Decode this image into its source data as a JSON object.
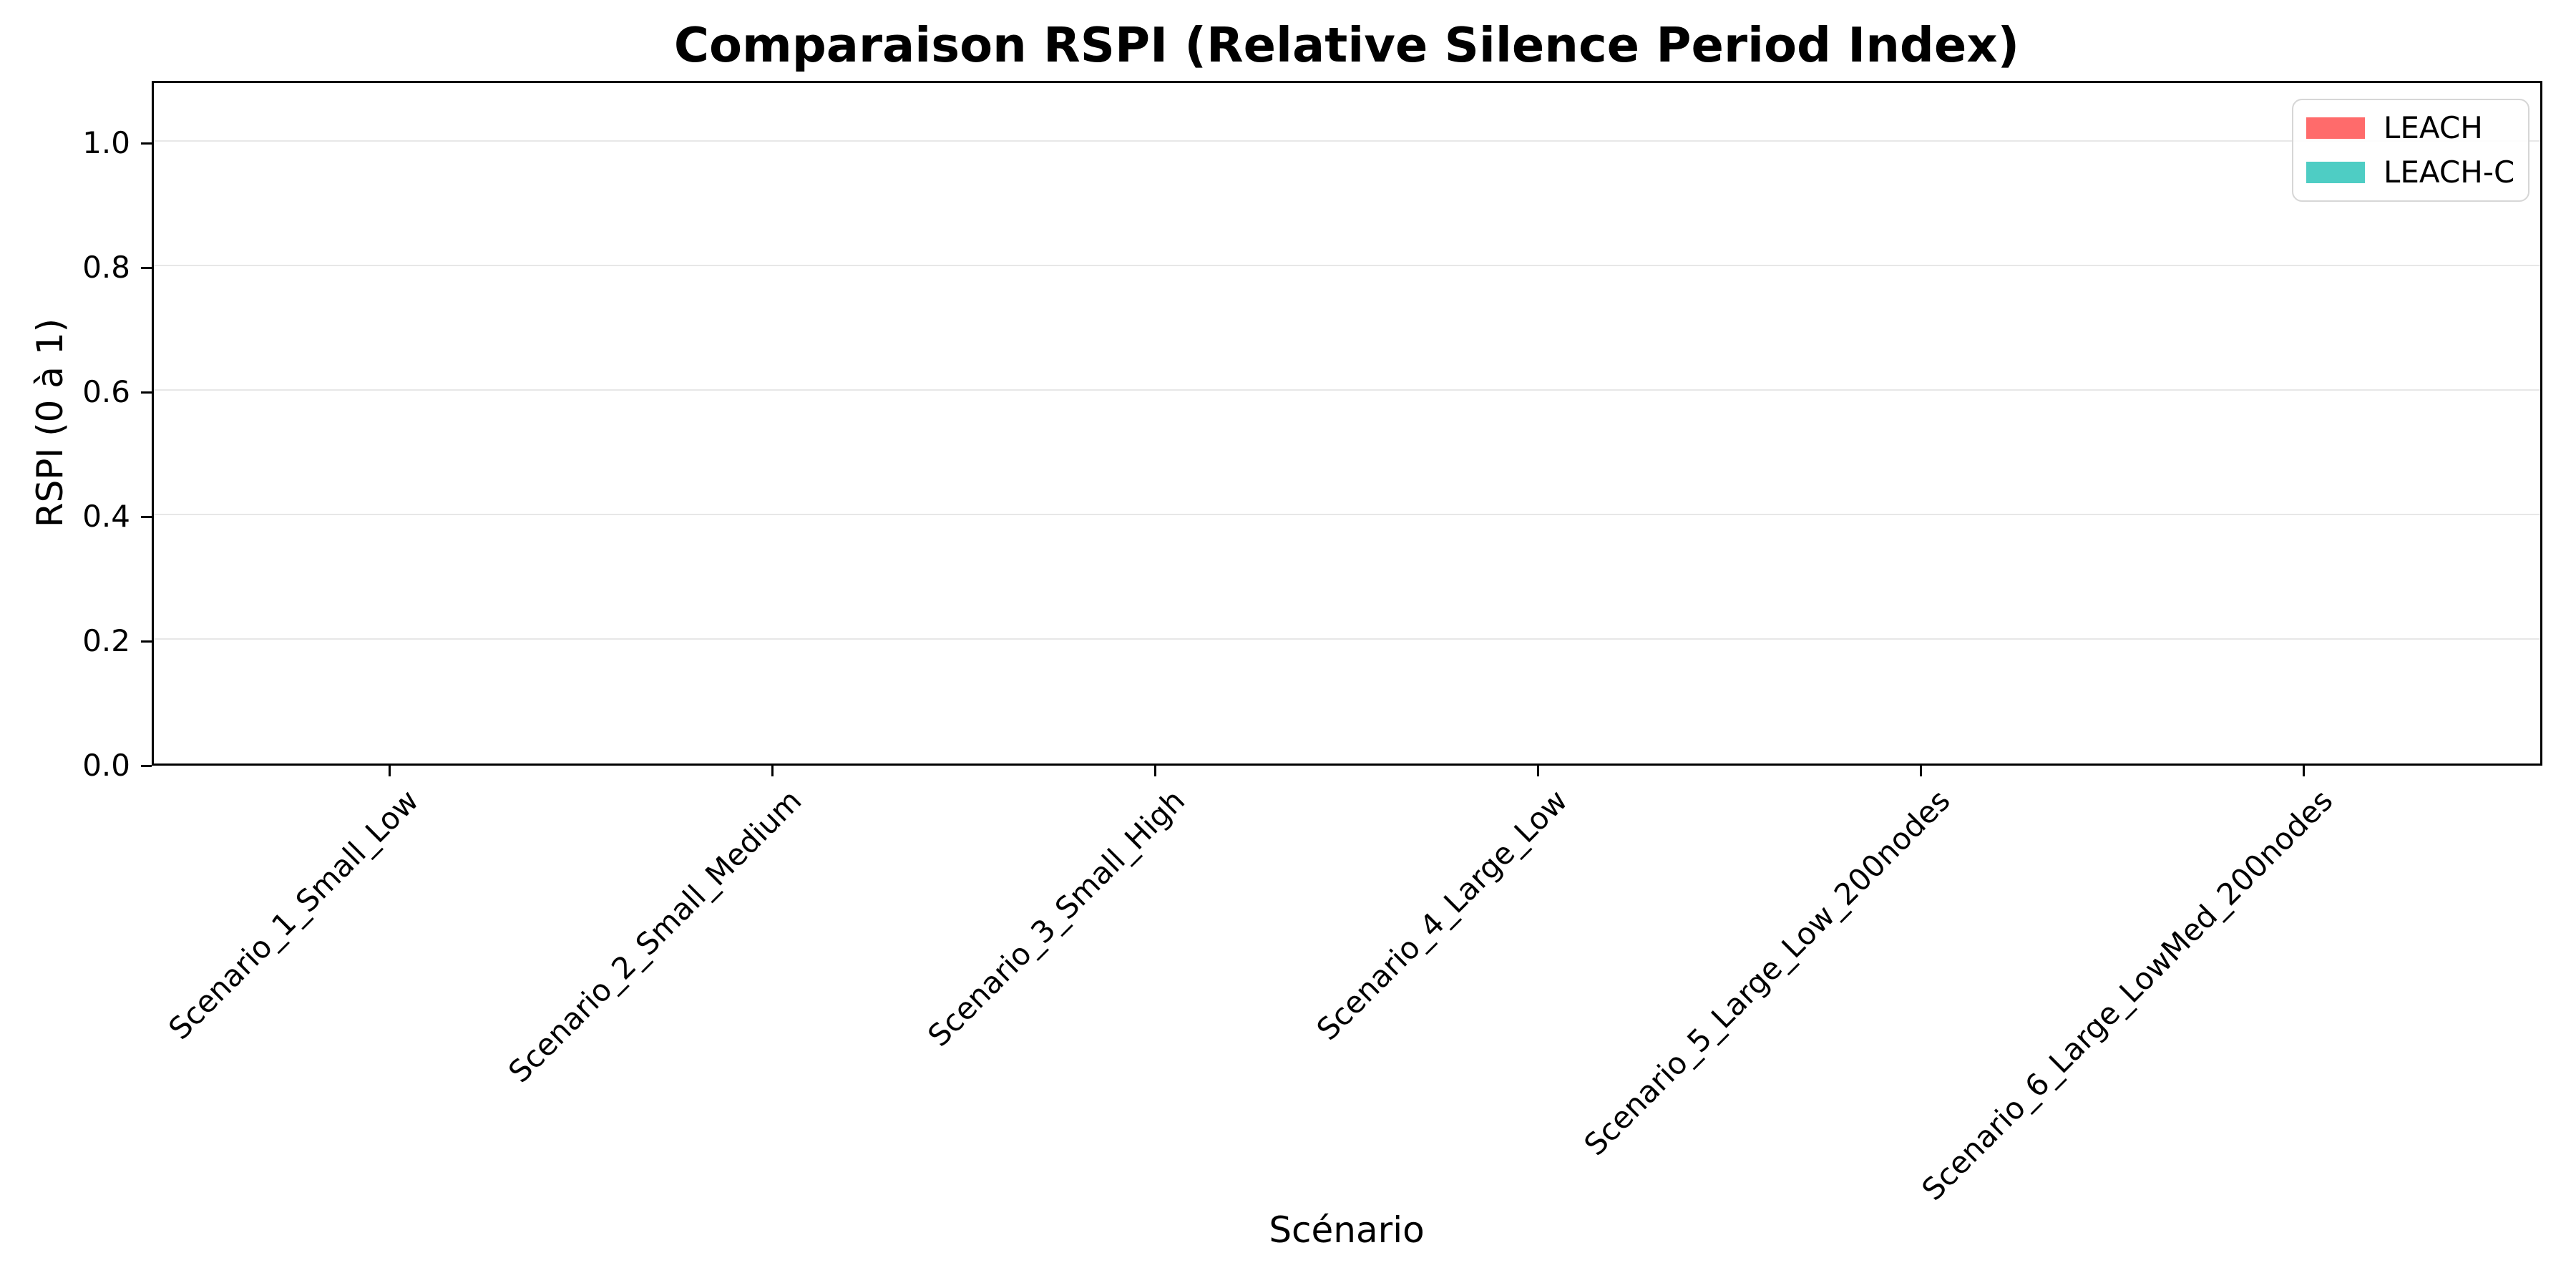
{
  "chart_data": {
    "type": "bar",
    "title": "Comparaison RSPI (Relative Silence Period Index)",
    "xlabel": "Scénario",
    "ylabel": "RSPI (0 à 1)",
    "categories": [
      "Scenario_1_Small_Low",
      "Scenario_2_Small_Medium",
      "Scenario_3_Small_High",
      "Scenario_4_Large_Low",
      "Scenario_5_Large_Low_200nodes",
      "Scenario_6_Large_LowMed_200nodes"
    ],
    "series": [
      {
        "name": "LEACH",
        "color": "#ff6b6b",
        "values": [
          0,
          0,
          0,
          0,
          0,
          0
        ]
      },
      {
        "name": "LEACH-C",
        "color": "#4ecdc4",
        "values": [
          0,
          0,
          0,
          0,
          0,
          0
        ]
      }
    ],
    "ylim": [
      0,
      1.1
    ],
    "yticks": [
      0.0,
      0.2,
      0.4,
      0.6,
      0.8,
      1.0
    ],
    "ytick_labels": [
      "0.0",
      "0.2",
      "0.4",
      "0.6",
      "0.8",
      "1.0"
    ],
    "grid": "horizontal",
    "gridline_color": "#e7e7e7",
    "legend_position": "upper right"
  }
}
